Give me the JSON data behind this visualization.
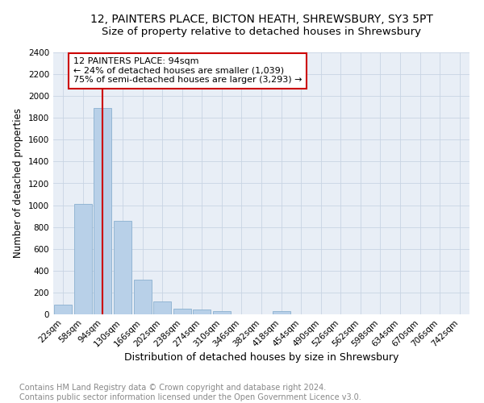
{
  "title1": "12, PAINTERS PLACE, BICTON HEATH, SHREWSBURY, SY3 5PT",
  "title2": "Size of property relative to detached houses in Shrewsbury",
  "xlabel": "Distribution of detached houses by size in Shrewsbury",
  "ylabel": "Number of detached properties",
  "categories": [
    "22sqm",
    "58sqm",
    "94sqm",
    "130sqm",
    "166sqm",
    "202sqm",
    "238sqm",
    "274sqm",
    "310sqm",
    "346sqm",
    "382sqm",
    "418sqm",
    "454sqm",
    "490sqm",
    "526sqm",
    "562sqm",
    "598sqm",
    "634sqm",
    "670sqm",
    "706sqm",
    "742sqm"
  ],
  "values": [
    90,
    1010,
    1890,
    855,
    320,
    120,
    55,
    42,
    30,
    0,
    0,
    30,
    0,
    0,
    0,
    0,
    0,
    0,
    0,
    0,
    0
  ],
  "bar_color": "#b8d0e8",
  "bar_edge_color": "#8ab0d0",
  "vline_x_index": 2,
  "vline_color": "#cc0000",
  "ann_line1": "12 PAINTERS PLACE: 94sqm",
  "ann_line2": "← 24% of detached houses are smaller (1,039)",
  "ann_line3": "75% of semi-detached houses are larger (3,293) →",
  "annotation_box_color": "#cc0000",
  "ylim": [
    0,
    2400
  ],
  "yticks": [
    0,
    200,
    400,
    600,
    800,
    1000,
    1200,
    1400,
    1600,
    1800,
    2000,
    2200,
    2400
  ],
  "grid_color": "#c8d4e4",
  "background_color": "#e8eef6",
  "footer1": "Contains HM Land Registry data © Crown copyright and database right 2024.",
  "footer2": "Contains public sector information licensed under the Open Government Licence v3.0.",
  "title1_fontsize": 10,
  "title2_fontsize": 9.5,
  "xlabel_fontsize": 9,
  "ylabel_fontsize": 8.5,
  "tick_fontsize": 7.5,
  "annotation_fontsize": 8,
  "footer_fontsize": 7
}
